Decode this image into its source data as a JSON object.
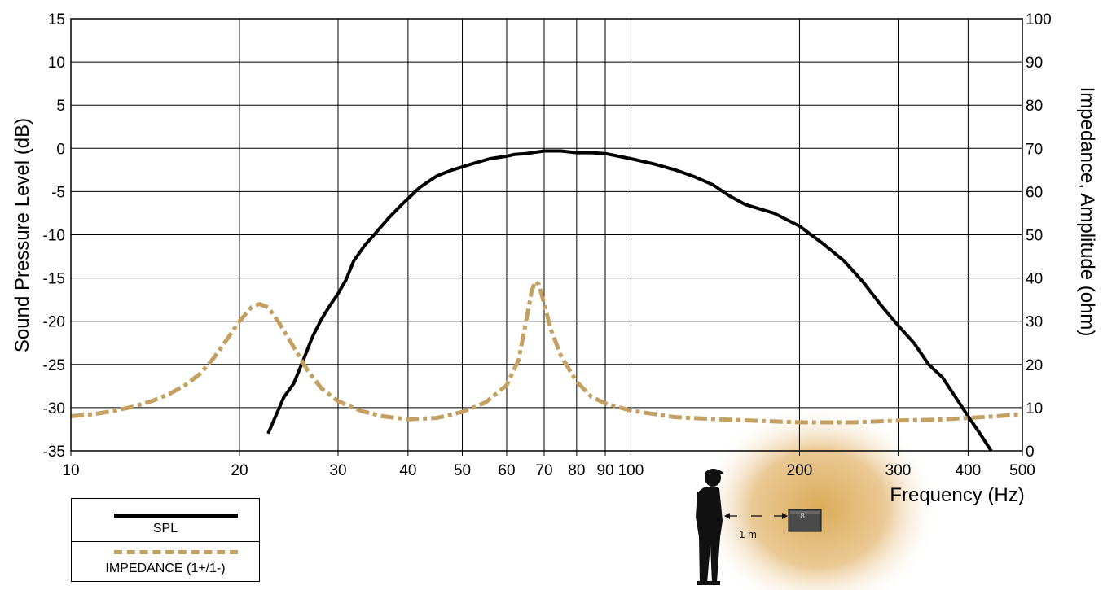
{
  "colors": {
    "spl": "#000000",
    "impedance": "#c4a063",
    "glow": "#d8a650",
    "grid": "#000000"
  },
  "chart_data": {
    "type": "line",
    "xscale": "log",
    "xlim": [
      10,
      500
    ],
    "xlabel": "Frequency  (Hz)",
    "x_ticks": [
      10,
      20,
      30,
      40,
      50,
      60,
      70,
      80,
      90,
      100,
      200,
      300,
      400,
      500
    ],
    "x_tick_labels": [
      "10",
      "20",
      "30",
      "40",
      "50",
      "60",
      "70",
      "80",
      "90",
      "100",
      "200",
      "300",
      "400",
      "500"
    ],
    "ylabel_left": "Sound Pressure Level (dB)",
    "ylim_left": [
      -35,
      15
    ],
    "y_ticks_left": [
      15,
      10,
      5,
      0,
      -5,
      -10,
      -15,
      -20,
      -25,
      -30,
      -35
    ],
    "y_tick_labels_left": [
      "15",
      "10",
      "5",
      "0",
      "-5",
      "-10",
      "-15",
      "-20",
      "-25",
      "-30",
      "-35"
    ],
    "ylabel_right": "Impedance, Amplitude  (ohm)",
    "ylim_right": [
      0,
      100
    ],
    "y_ticks_right": [
      100,
      90,
      80,
      70,
      60,
      50,
      40,
      30,
      20,
      10,
      0
    ],
    "y_tick_labels_right": [
      "100",
      "90",
      "80",
      "70",
      "60",
      "50",
      "40",
      "30",
      "20",
      "10",
      "0"
    ],
    "grid": true,
    "legend_position": "bottom-left, below plot",
    "series": [
      {
        "name": "SPL",
        "axis": "left",
        "style": "solid",
        "points": [
          [
            22.5,
            -33
          ],
          [
            23.2,
            -31
          ],
          [
            24,
            -28.8
          ],
          [
            25,
            -27.2
          ],
          [
            26,
            -24.5
          ],
          [
            27,
            -21.8
          ],
          [
            28,
            -19.8
          ],
          [
            29,
            -18.2
          ],
          [
            30,
            -16.8
          ],
          [
            31,
            -15.2
          ],
          [
            32,
            -13
          ],
          [
            33.5,
            -11.2
          ],
          [
            35,
            -9.8
          ],
          [
            37,
            -8
          ],
          [
            39,
            -6.5
          ],
          [
            42,
            -4.5
          ],
          [
            45,
            -3.2
          ],
          [
            48,
            -2.5
          ],
          [
            52,
            -1.8
          ],
          [
            56,
            -1.2
          ],
          [
            60,
            -0.9
          ],
          [
            62,
            -0.7
          ],
          [
            65,
            -0.6
          ],
          [
            70,
            -0.3
          ],
          [
            75,
            -0.3
          ],
          [
            80,
            -0.5
          ],
          [
            85,
            -0.5
          ],
          [
            90,
            -0.6
          ],
          [
            100,
            -1.2
          ],
          [
            110,
            -1.8
          ],
          [
            120,
            -2.5
          ],
          [
            130,
            -3.3
          ],
          [
            140,
            -4.2
          ],
          [
            150,
            -5.5
          ],
          [
            160,
            -6.5
          ],
          [
            180,
            -7.5
          ],
          [
            200,
            -9
          ],
          [
            220,
            -11
          ],
          [
            240,
            -13
          ],
          [
            260,
            -15.5
          ],
          [
            280,
            -18.2
          ],
          [
            300,
            -20.5
          ],
          [
            320,
            -22.5
          ],
          [
            340,
            -25
          ],
          [
            360,
            -26.5
          ],
          [
            380,
            -28.8
          ],
          [
            400,
            -31
          ],
          [
            420,
            -33
          ],
          [
            440,
            -35
          ]
        ]
      },
      {
        "name": "IMPEDANCE (1+/1-)",
        "axis": "right",
        "style": "dashdot",
        "points": [
          [
            10,
            8
          ],
          [
            11,
            8.5
          ],
          [
            12,
            9.3
          ],
          [
            13,
            10.3
          ],
          [
            14,
            11.6
          ],
          [
            15,
            13.2
          ],
          [
            16,
            15.2
          ],
          [
            17,
            17.8
          ],
          [
            18,
            21.5
          ],
          [
            19,
            25.8
          ],
          [
            20,
            30
          ],
          [
            21,
            33.2
          ],
          [
            21.7,
            34
          ],
          [
            22.5,
            33.2
          ],
          [
            23.5,
            29.8
          ],
          [
            25,
            24
          ],
          [
            26.5,
            18.5
          ],
          [
            28,
            14.5
          ],
          [
            30,
            11.5
          ],
          [
            33,
            9.2
          ],
          [
            36,
            8
          ],
          [
            40,
            7.3
          ],
          [
            45,
            7.6
          ],
          [
            50,
            9
          ],
          [
            55,
            11.2
          ],
          [
            60,
            15.2
          ],
          [
            63,
            21
          ],
          [
            65,
            30
          ],
          [
            66.5,
            37
          ],
          [
            67.5,
            39.2
          ],
          [
            68.5,
            38.5
          ],
          [
            70,
            34
          ],
          [
            72,
            28
          ],
          [
            75,
            22
          ],
          [
            80,
            16
          ],
          [
            85,
            12.5
          ],
          [
            90,
            11
          ],
          [
            100,
            9.3
          ],
          [
            120,
            7.8
          ],
          [
            150,
            7.2
          ],
          [
            200,
            6.6
          ],
          [
            250,
            6.6
          ],
          [
            300,
            7
          ],
          [
            350,
            7.2
          ],
          [
            400,
            7.6
          ],
          [
            450,
            8
          ],
          [
            500,
            8.5
          ]
        ]
      }
    ]
  },
  "legend": [
    {
      "label": "SPL",
      "style": "solid",
      "color": "#000000"
    },
    {
      "label": "IMPEDANCE (1+/1-)",
      "style": "dashdot",
      "color": "#c4a063"
    }
  ],
  "illustration": {
    "distance_label": "1 m",
    "speaker_label": "8"
  }
}
